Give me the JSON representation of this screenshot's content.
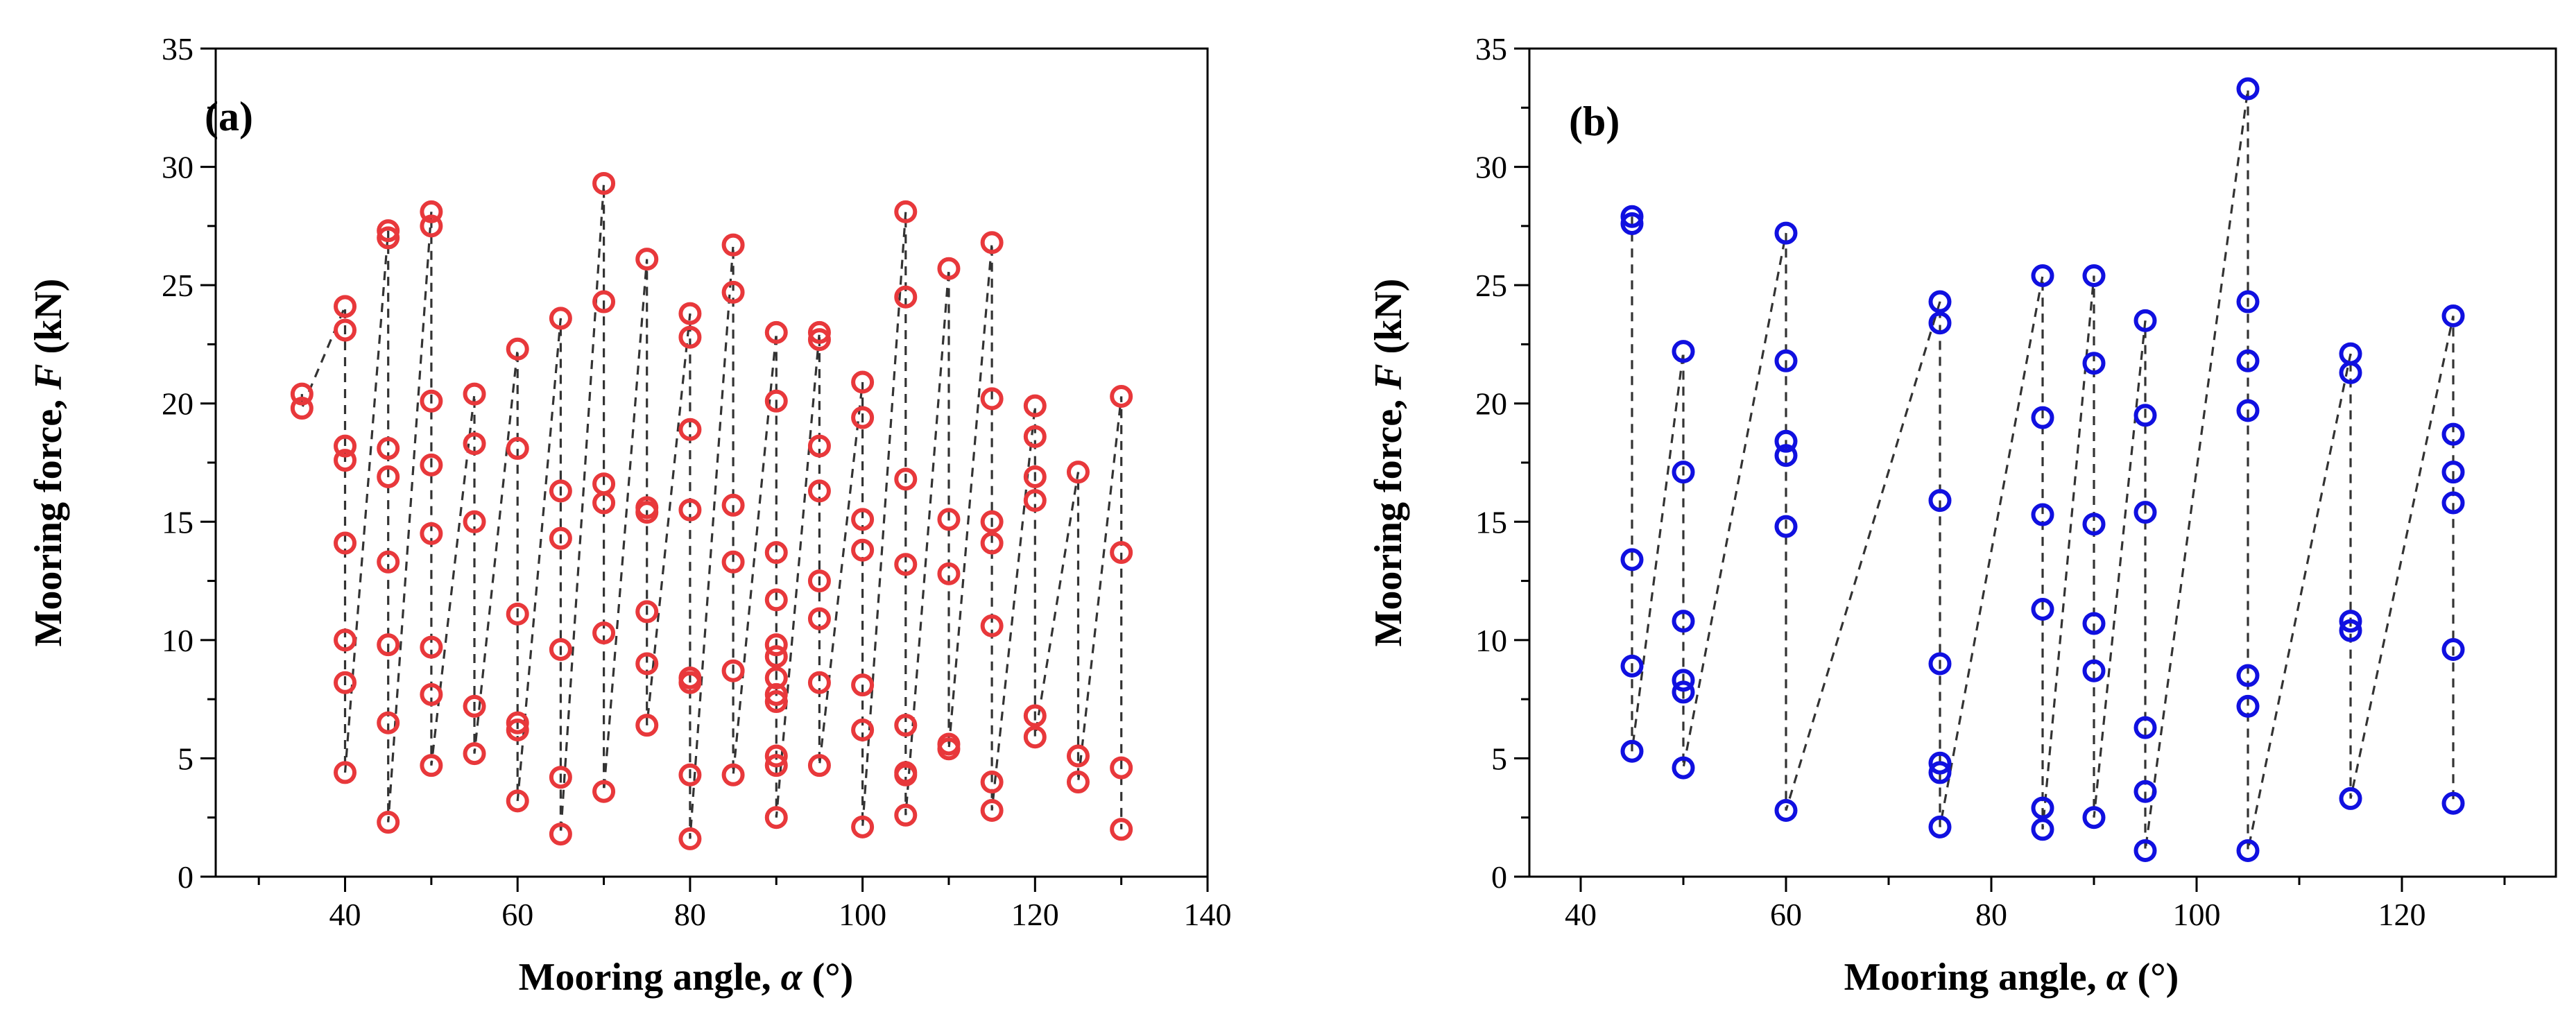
{
  "chart_data": [
    {
      "type": "scatter",
      "panel_label": "(a)",
      "xlabel_prefix": "Mooring angle, ",
      "xlabel_symbol": "α",
      "xlabel_suffix": " (°)",
      "ylabel_prefix": "Mooring force, ",
      "ylabel_symbol": "F",
      "ylabel_suffix": " (kN)",
      "xlim": [
        25,
        140
      ],
      "ylim": [
        0,
        35
      ],
      "xticks": [
        40,
        60,
        80,
        100,
        120,
        140
      ],
      "yticks": [
        0,
        5,
        10,
        15,
        20,
        25,
        30,
        35
      ],
      "marker_color": "#e8383b",
      "line_color": "#333333",
      "line_style": "dashed",
      "grid": false,
      "groups": [
        {
          "x": 35,
          "y": [
            20.4,
            19.8
          ]
        },
        {
          "x": 40,
          "y": [
            4.4,
            8.2,
            10.0,
            14.1,
            17.6,
            18.2,
            23.1,
            24.1
          ]
        },
        {
          "x": 45,
          "y": [
            2.3,
            6.5,
            9.8,
            13.3,
            16.9,
            18.1,
            27.0,
            27.3
          ]
        },
        {
          "x": 50,
          "y": [
            4.7,
            7.7,
            9.7,
            14.5,
            17.4,
            20.1,
            27.5,
            28.1
          ]
        },
        {
          "x": 55,
          "y": [
            5.2,
            7.2,
            15.0,
            18.3,
            20.4
          ]
        },
        {
          "x": 60,
          "y": [
            3.2,
            6.2,
            6.5,
            11.1,
            18.1,
            22.3
          ]
        },
        {
          "x": 65,
          "y": [
            1.8,
            4.2,
            9.6,
            14.3,
            16.3,
            23.6
          ]
        },
        {
          "x": 70,
          "y": [
            3.6,
            10.3,
            15.8,
            16.6,
            24.3,
            29.3
          ]
        },
        {
          "x": 75,
          "y": [
            6.4,
            9.0,
            11.2,
            15.4,
            15.6,
            26.1
          ]
        },
        {
          "x": 80,
          "y": [
            1.6,
            4.3,
            8.2,
            8.4,
            15.5,
            18.9,
            22.8,
            23.8
          ]
        },
        {
          "x": 85,
          "y": [
            4.3,
            8.7,
            13.3,
            15.7,
            24.7,
            26.7
          ]
        },
        {
          "x": 90,
          "y": [
            2.5,
            4.7,
            5.1,
            7.4,
            7.7,
            8.4,
            9.3,
            9.8,
            11.7,
            13.7,
            20.1,
            23.0
          ]
        },
        {
          "x": 95,
          "y": [
            4.7,
            8.2,
            10.9,
            12.5,
            16.3,
            18.2,
            22.7,
            23.0
          ]
        },
        {
          "x": 100,
          "y": [
            2.1,
            6.2,
            8.1,
            13.8,
            15.1,
            19.4,
            20.9
          ]
        },
        {
          "x": 105,
          "y": [
            2.6,
            4.3,
            4.4,
            6.4,
            13.2,
            16.8,
            24.5,
            28.1
          ]
        },
        {
          "x": 110,
          "y": [
            5.4,
            5.6,
            12.8,
            15.1,
            25.7
          ]
        },
        {
          "x": 115,
          "y": [
            2.8,
            4.0,
            10.6,
            14.1,
            15.0,
            20.2,
            26.8
          ]
        },
        {
          "x": 120,
          "y": [
            5.9,
            6.8,
            15.9,
            16.9,
            18.6,
            19.9
          ]
        },
        {
          "x": 125,
          "y": [
            4.0,
            5.1,
            17.1
          ]
        },
        {
          "x": 130,
          "y": [
            2.0,
            4.6,
            13.7,
            20.3
          ]
        }
      ]
    },
    {
      "type": "scatter",
      "panel_label": "(b)",
      "xlabel_prefix": "Mooring angle, ",
      "xlabel_symbol": "α",
      "xlabel_suffix": " (°)",
      "ylabel_prefix": "Mooring force, ",
      "ylabel_symbol": "F",
      "ylabel_suffix": " (kN)",
      "xlim": [
        35,
        135
      ],
      "ylim": [
        0,
        35
      ],
      "xticks": [
        40,
        60,
        80,
        100,
        120
      ],
      "yticks": [
        0,
        5,
        10,
        15,
        20,
        25,
        30,
        35
      ],
      "marker_color": "#1010e0",
      "line_color": "#333333",
      "line_style": "dashed",
      "grid": false,
      "groups": [
        {
          "x": 45,
          "y": [
            5.3,
            8.9,
            13.4,
            27.6,
            27.9
          ]
        },
        {
          "x": 50,
          "y": [
            4.6,
            7.8,
            8.3,
            10.8,
            17.1,
            22.2
          ]
        },
        {
          "x": 60,
          "y": [
            2.8,
            14.8,
            17.8,
            18.4,
            21.8,
            27.2
          ]
        },
        {
          "x": 75,
          "y": [
            2.1,
            4.4,
            4.8,
            9.0,
            15.9,
            23.4,
            24.3
          ]
        },
        {
          "x": 85,
          "y": [
            2.0,
            2.9,
            11.3,
            15.3,
            19.4,
            25.4
          ]
        },
        {
          "x": 90,
          "y": [
            2.5,
            8.7,
            10.7,
            14.9,
            21.7,
            25.4
          ]
        },
        {
          "x": 95,
          "y": [
            1.1,
            3.6,
            6.3,
            15.4,
            19.5,
            23.5
          ]
        },
        {
          "x": 105,
          "y": [
            1.1,
            7.2,
            8.5,
            19.7,
            21.8,
            24.3,
            33.3
          ]
        },
        {
          "x": 115,
          "y": [
            3.3,
            10.4,
            10.8,
            21.3,
            22.1
          ]
        },
        {
          "x": 125,
          "y": [
            3.1,
            9.6,
            15.8,
            17.1,
            18.7,
            23.7
          ]
        }
      ]
    }
  ]
}
